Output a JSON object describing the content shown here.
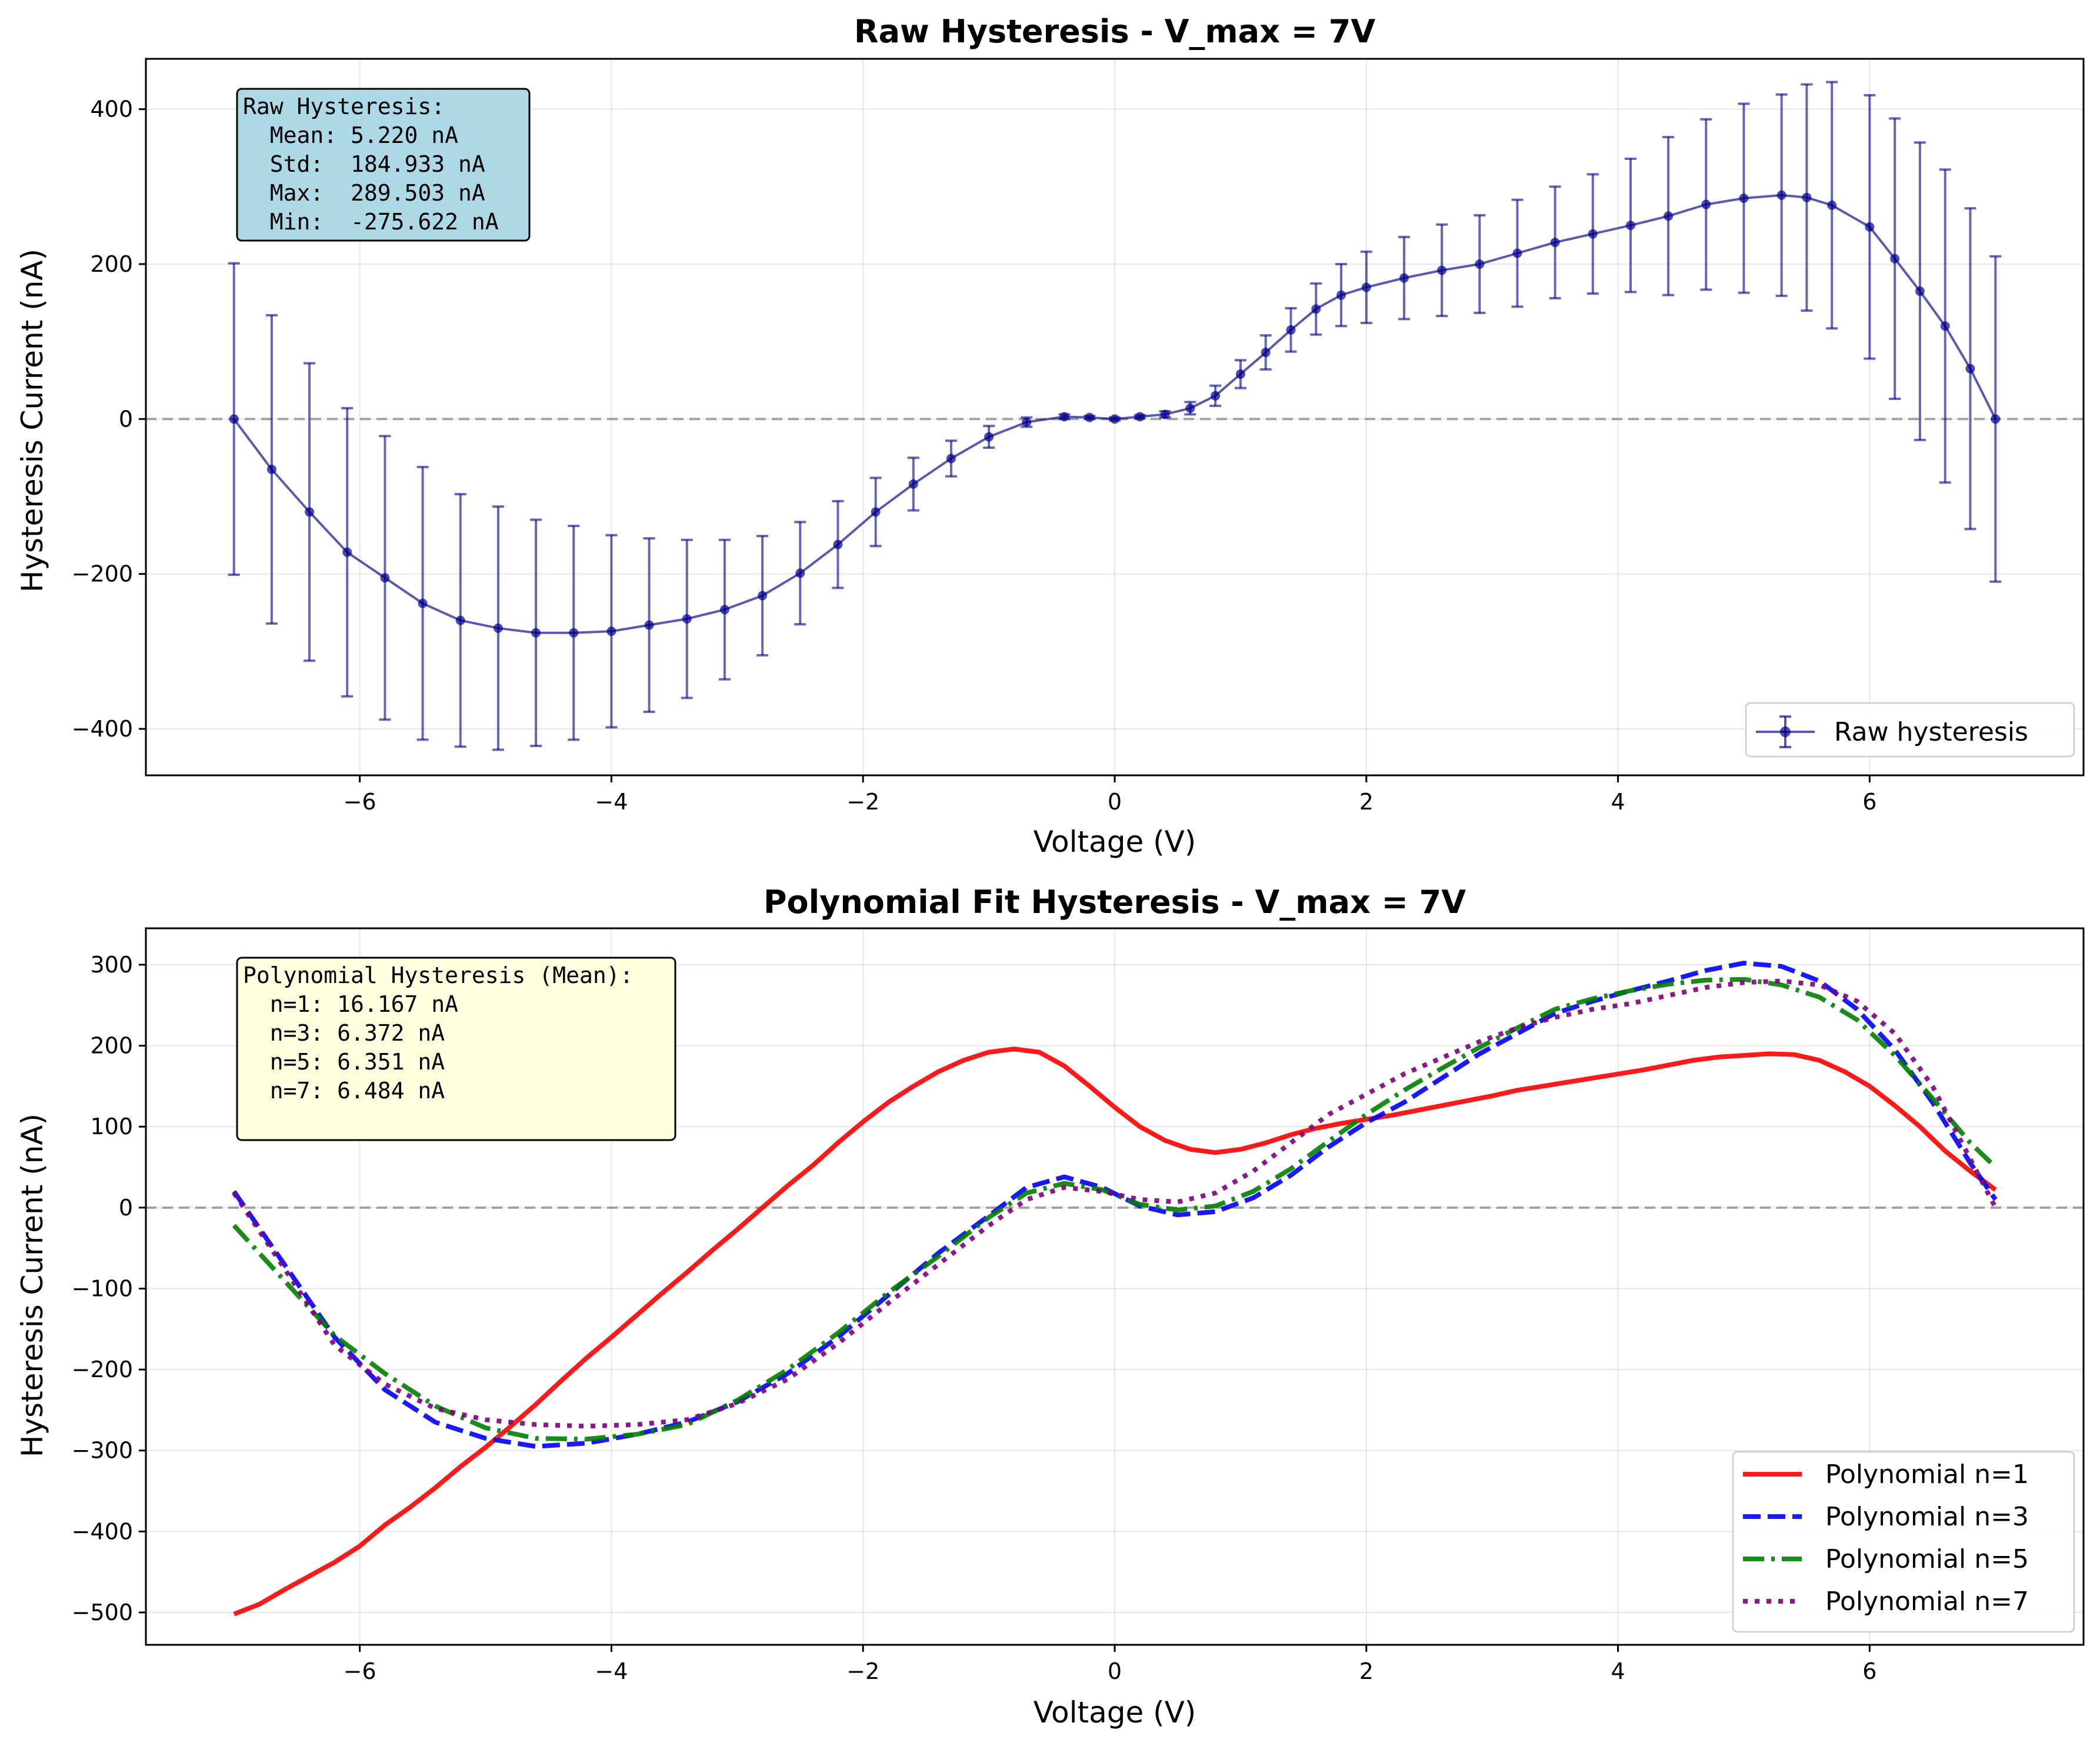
{
  "chart_data": [
    {
      "type": "line",
      "title": "Raw Hysteresis - V_max = 7V",
      "xlabel": "Voltage (V)",
      "ylabel": "Hysteresis Current (nA)",
      "xlim": [
        -7.7,
        7.7
      ],
      "ylim": [
        -460,
        465
      ],
      "xticks": [
        -6,
        -4,
        -2,
        0,
        2,
        4,
        6
      ],
      "xtick_labels": [
        "−6",
        "−4",
        "−2",
        "0",
        "2",
        "4",
        "6"
      ],
      "yticks": [
        -400,
        -200,
        0,
        200,
        400
      ],
      "ytick_labels": [
        "−400",
        "−200",
        "0",
        "200",
        "400"
      ],
      "grid": true,
      "zero_line": true,
      "legend_position": "lower-right",
      "series": [
        {
          "name": "Raw hysteresis",
          "color": "#00008b",
          "marker": "circle",
          "error_bars": true,
          "x": [
            -7.0,
            -6.7,
            -6.4,
            -6.1,
            -5.8,
            -5.5,
            -5.2,
            -4.9,
            -4.6,
            -4.3,
            -4.0,
            -3.7,
            -3.4,
            -3.1,
            -2.8,
            -2.5,
            -2.2,
            -1.9,
            -1.6,
            -1.3,
            -1.0,
            -0.7,
            -0.4,
            -0.2,
            0.0,
            0.2,
            0.4,
            0.6,
            0.8,
            1.0,
            1.2,
            1.4,
            1.6,
            1.8,
            2.0,
            2.3,
            2.6,
            2.9,
            3.2,
            3.5,
            3.8,
            4.1,
            4.4,
            4.7,
            5.0,
            5.3,
            5.5,
            5.7,
            6.0,
            6.2,
            6.4,
            6.6,
            6.8,
            7.0
          ],
          "y": [
            0,
            -65,
            -120,
            -172,
            -205,
            -238,
            -260,
            -270,
            -276,
            -276,
            -274,
            -266,
            -258,
            -246,
            -228,
            -199,
            -162,
            -120,
            -84,
            -51,
            -23,
            -4,
            3,
            2,
            0,
            3,
            6,
            14,
            30,
            58,
            86,
            115,
            142,
            160,
            170,
            182,
            192,
            200,
            214,
            228,
            239,
            250,
            262,
            277,
            285,
            289,
            286,
            276,
            248,
            207,
            165,
            120,
            65,
            0
          ],
          "err": [
            201,
            199,
            192,
            186,
            183,
            176,
            163,
            157,
            146,
            138,
            124,
            112,
            102,
            90,
            77,
            66,
            56,
            44,
            34,
            23,
            14,
            6,
            3,
            2,
            2,
            2,
            4,
            8,
            13,
            18,
            22,
            28,
            33,
            40,
            46,
            53,
            59,
            63,
            69,
            72,
            77,
            86,
            102,
            110,
            122,
            130,
            146,
            159,
            170,
            181,
            192,
            202,
            207,
            210
          ]
        }
      ],
      "annotation": {
        "lines": [
          "Raw Hysteresis:",
          "  Mean: 5.220 nA",
          "  Std:  184.933 nA",
          "  Max:  289.503 nA",
          "  Min:  -275.622 nA"
        ],
        "background": "#add8e6"
      }
    },
    {
      "type": "line",
      "title": "Polynomial Fit Hysteresis - V_max = 7V",
      "xlabel": "Voltage (V)",
      "ylabel": "Hysteresis Current (nA)",
      "xlim": [
        -7.7,
        7.7
      ],
      "ylim": [
        -540,
        345
      ],
      "xticks": [
        -6,
        -4,
        -2,
        0,
        2,
        4,
        6
      ],
      "xtick_labels": [
        "−6",
        "−4",
        "−2",
        "0",
        "2",
        "4",
        "6"
      ],
      "yticks": [
        -500,
        -400,
        -300,
        -200,
        -100,
        0,
        100,
        200,
        300
      ],
      "ytick_labels": [
        "−500",
        "−400",
        "−300",
        "−200",
        "−100",
        "0",
        "100",
        "200",
        "300"
      ],
      "grid": true,
      "zero_line": true,
      "legend_position": "lower-right",
      "series": [
        {
          "name": "Polynomial n=1",
          "color": "#ff0000",
          "dash": "solid",
          "x": [
            -7.0,
            -6.8,
            -6.6,
            -6.4,
            -6.2,
            -6.0,
            -5.8,
            -5.6,
            -5.4,
            -5.2,
            -5.0,
            -4.8,
            -4.6,
            -4.4,
            -4.2,
            -4.0,
            -3.8,
            -3.6,
            -3.4,
            -3.2,
            -3.0,
            -2.8,
            -2.6,
            -2.4,
            -2.2,
            -2.0,
            -1.8,
            -1.6,
            -1.4,
            -1.2,
            -1.0,
            -0.8,
            -0.6,
            -0.4,
            -0.2,
            0.0,
            0.2,
            0.4,
            0.6,
            0.8,
            1.0,
            1.2,
            1.4,
            1.6,
            1.8,
            2.0,
            2.2,
            2.4,
            2.6,
            2.8,
            3.0,
            3.2,
            3.4,
            3.6,
            3.8,
            4.0,
            4.2,
            4.4,
            4.6,
            4.8,
            5.0,
            5.2,
            5.4,
            5.6,
            5.8,
            6.0,
            6.2,
            6.4,
            6.6,
            6.8,
            7.0
          ],
          "y": [
            -502,
            -490,
            -472,
            -455,
            -438,
            -418,
            -392,
            -370,
            -346,
            -320,
            -296,
            -270,
            -243,
            -214,
            -186,
            -160,
            -133,
            -106,
            -80,
            -53,
            -27,
            0,
            27,
            52,
            80,
            106,
            130,
            150,
            168,
            182,
            192,
            196,
            192,
            175,
            150,
            124,
            100,
            83,
            72,
            68,
            72,
            80,
            90,
            98,
            104,
            109,
            114,
            120,
            126,
            132,
            138,
            145,
            150,
            155,
            160,
            165,
            170,
            176,
            182,
            186,
            188,
            190,
            189,
            182,
            168,
            150,
            126,
            100,
            70,
            45,
            22
          ]
        },
        {
          "name": "Polynomial n=3",
          "color": "#0000ff",
          "dash": "dashed",
          "x": [
            -7.0,
            -6.6,
            -6.2,
            -5.8,
            -5.4,
            -5.0,
            -4.6,
            -4.2,
            -3.8,
            -3.4,
            -3.0,
            -2.6,
            -2.2,
            -1.8,
            -1.4,
            -1.0,
            -0.7,
            -0.4,
            -0.1,
            0.2,
            0.5,
            0.8,
            1.1,
            1.4,
            1.7,
            2.0,
            2.3,
            2.6,
            2.9,
            3.2,
            3.5,
            3.8,
            4.1,
            4.4,
            4.7,
            5.0,
            5.3,
            5.6,
            5.9,
            6.2,
            6.5,
            6.8,
            7.0
          ],
          "y": [
            20,
            -70,
            -160,
            -225,
            -265,
            -285,
            -295,
            -291,
            -280,
            -265,
            -240,
            -205,
            -160,
            -108,
            -56,
            -10,
            25,
            38,
            25,
            2,
            -9,
            -5,
            12,
            40,
            75,
            105,
            130,
            160,
            190,
            215,
            240,
            255,
            268,
            280,
            293,
            302,
            298,
            280,
            245,
            195,
            130,
            55,
            10
          ]
        },
        {
          "name": "Polynomial n=5",
          "color": "#008000",
          "dash": "dashdot",
          "x": [
            -7.0,
            -6.6,
            -6.2,
            -5.8,
            -5.4,
            -5.0,
            -4.6,
            -4.2,
            -3.8,
            -3.4,
            -3.0,
            -2.6,
            -2.2,
            -1.8,
            -1.4,
            -1.0,
            -0.7,
            -0.4,
            -0.1,
            0.2,
            0.5,
            0.8,
            1.1,
            1.4,
            1.7,
            2.0,
            2.3,
            2.6,
            2.9,
            3.2,
            3.5,
            3.8,
            4.1,
            4.4,
            4.7,
            5.0,
            5.3,
            5.6,
            5.9,
            6.2,
            6.5,
            6.8,
            7.0
          ],
          "y": [
            -22,
            -90,
            -158,
            -205,
            -245,
            -272,
            -285,
            -286,
            -280,
            -268,
            -238,
            -200,
            -155,
            -105,
            -60,
            -12,
            18,
            30,
            22,
            4,
            -3,
            2,
            20,
            48,
            82,
            115,
            145,
            172,
            198,
            222,
            245,
            258,
            268,
            276,
            281,
            282,
            275,
            260,
            232,
            188,
            135,
            80,
            50
          ]
        },
        {
          "name": "Polynomial n=7",
          "color": "#800080",
          "dash": "dotted",
          "x": [
            -7.0,
            -6.6,
            -6.2,
            -5.8,
            -5.4,
            -5.0,
            -4.6,
            -4.2,
            -3.8,
            -3.4,
            -3.0,
            -2.6,
            -2.2,
            -1.8,
            -1.4,
            -1.0,
            -0.7,
            -0.4,
            -0.1,
            0.2,
            0.5,
            0.8,
            1.1,
            1.4,
            1.7,
            2.0,
            2.3,
            2.6,
            2.9,
            3.2,
            3.5,
            3.8,
            4.1,
            4.4,
            4.7,
            5.0,
            5.3,
            5.6,
            5.9,
            6.2,
            6.5,
            6.8,
            7.0
          ],
          "y": [
            18,
            -75,
            -170,
            -218,
            -248,
            -262,
            -268,
            -270,
            -268,
            -262,
            -242,
            -212,
            -168,
            -118,
            -70,
            -22,
            10,
            25,
            20,
            10,
            7,
            18,
            45,
            80,
            115,
            140,
            165,
            185,
            205,
            222,
            235,
            245,
            252,
            262,
            272,
            278,
            280,
            275,
            255,
            215,
            150,
            60,
            0
          ]
        }
      ],
      "annotation": {
        "lines": [
          "Polynomial Hysteresis (Mean):",
          "  n=1: 16.167 nA",
          "  n=3: 6.372 nA",
          "  n=5: 6.351 nA",
          "  n=7: 6.484 nA"
        ],
        "background": "#ffffe0"
      }
    }
  ]
}
